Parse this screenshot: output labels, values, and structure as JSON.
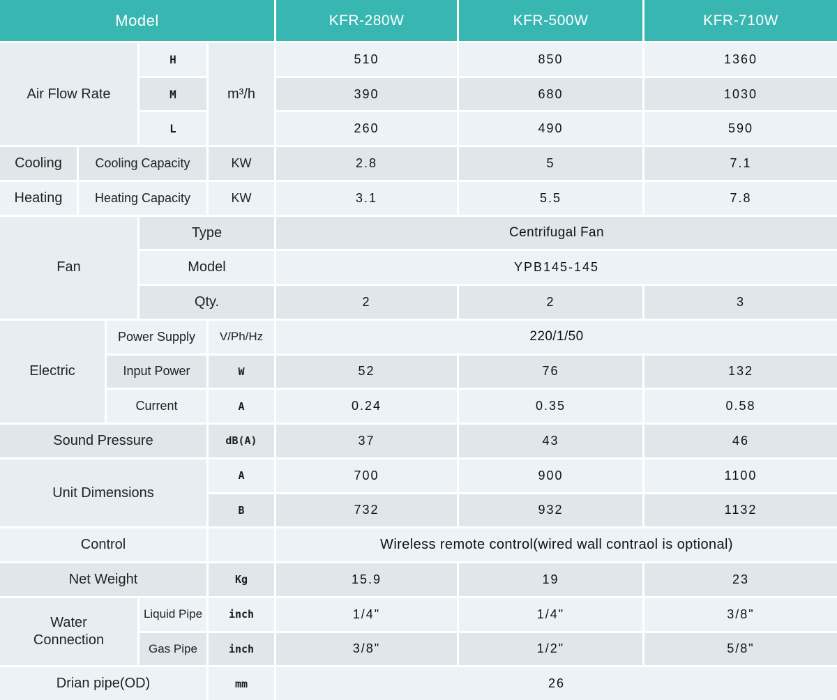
{
  "header": {
    "model_label": "Model",
    "columns": [
      "KFR-280W",
      "KFR-500W",
      "KFR-710W"
    ]
  },
  "air_flow": {
    "label": "Air Flow Rate",
    "unit": "m³/h",
    "rows": [
      {
        "speed": "H",
        "values": [
          "510",
          "850",
          "1360"
        ]
      },
      {
        "speed": "M",
        "values": [
          "390",
          "680",
          "1030"
        ]
      },
      {
        "speed": "L",
        "values": [
          "260",
          "490",
          "590"
        ]
      }
    ]
  },
  "cooling": {
    "group": "Cooling",
    "label": "Cooling Capacity",
    "unit": "KW",
    "values": [
      "2.8",
      "5",
      "7.1"
    ]
  },
  "heating": {
    "group": "Heating",
    "label": "Heating Capacity",
    "unit": "KW",
    "values": [
      "3.1",
      "5.5",
      "7.8"
    ]
  },
  "fan": {
    "label": "Fan",
    "type": {
      "label": "Type",
      "value": "Centrifugal Fan"
    },
    "model": {
      "label": "Model",
      "value": "YPB145-145"
    },
    "qty": {
      "label": "Qty.",
      "values": [
        "2",
        "2",
        "3"
      ]
    }
  },
  "electric": {
    "label": "Electric",
    "power_supply": {
      "label": "Power Supply",
      "unit": "V/Ph/Hz",
      "value": "220/1/50"
    },
    "input_power": {
      "label": "Input Power",
      "unit": "W",
      "values": [
        "52",
        "76",
        "132"
      ]
    },
    "current": {
      "label": "Current",
      "unit": "A",
      "values": [
        "0.24",
        "0.35",
        "0.58"
      ]
    }
  },
  "sound_pressure": {
    "label": "Sound Pressure",
    "unit": "dB(A)",
    "values": [
      "37",
      "43",
      "46"
    ]
  },
  "unit_dimensions": {
    "label": "Unit Dimensions",
    "rows": [
      {
        "dim": "A",
        "values": [
          "700",
          "900",
          "1100"
        ]
      },
      {
        "dim": "B",
        "values": [
          "732",
          "932",
          "1132"
        ]
      }
    ]
  },
  "control": {
    "label": "Control",
    "value": "Wireless remote control(wired wall contraol is optional)"
  },
  "net_weight": {
    "label": "Net Weight",
    "unit": "Kg",
    "values": [
      "15.9",
      "19",
      "23"
    ]
  },
  "water_connection": {
    "label": "Water Connection",
    "rows": [
      {
        "pipe": "Liquid Pipe",
        "unit": "inch",
        "values": [
          "1/4\"",
          "1/4\"",
          "3/8\""
        ]
      },
      {
        "pipe": "Gas Pipe",
        "unit": "inch",
        "values": [
          "3/8\"",
          "1/2\"",
          "5/8\""
        ]
      }
    ]
  },
  "drain_pipe": {
    "label": "Drian pipe(OD)",
    "unit": "mm",
    "value": "26"
  },
  "colors": {
    "header_teal": "#38b7b2",
    "row_light": "#ecf2f5",
    "row_dark": "#dfe7ea",
    "label_gray": "#e7eef1"
  }
}
